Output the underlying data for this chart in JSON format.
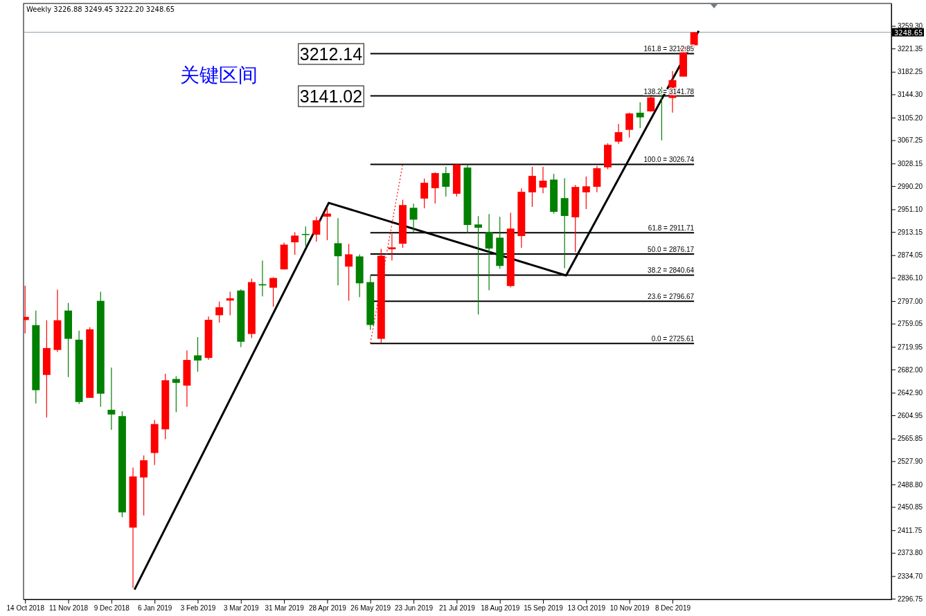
{
  "chart_data": {
    "type": "candlestick",
    "title": "Weekly  3226.88 3249.45 3222.20 3248.65",
    "xlim": [
      "2018-10-13",
      "2020-04-28"
    ],
    "ylim": [
      2295.6,
      3297.1
    ],
    "xticks": [
      {
        "value": "2018-10-14",
        "label": "14 Oct 2018"
      },
      {
        "value": "2018-11-11",
        "label": "11 Nov 2018"
      },
      {
        "value": "2018-12-09",
        "label": "9 Dec 2018"
      },
      {
        "value": "2019-01-06",
        "label": "6 Jan 2019"
      },
      {
        "value": "2019-02-03",
        "label": "3 Feb 2019"
      },
      {
        "value": "2019-03-03",
        "label": "3 Mar 2019"
      },
      {
        "value": "2019-03-31",
        "label": "31 Mar 2019"
      },
      {
        "value": "2019-04-28",
        "label": "28 Apr 2019"
      },
      {
        "value": "2019-05-26",
        "label": "26 May 2019"
      },
      {
        "value": "2019-06-23",
        "label": "23 Jun 2019"
      },
      {
        "value": "2019-07-21",
        "label": "21 Jul 2019"
      },
      {
        "value": "2019-08-18",
        "label": "18 Aug 2019"
      },
      {
        "value": "2019-09-15",
        "label": "15 Sep 2019"
      },
      {
        "value": "2019-10-13",
        "label": "13 Oct 2019"
      },
      {
        "value": "2019-11-10",
        "label": "10 Nov 2019"
      },
      {
        "value": "2019-12-08",
        "label": "8 Dec 2019"
      }
    ],
    "yticks": [
      {
        "value": 3259.3,
        "label": "3259.30"
      },
      {
        "value": 3221.35,
        "label": "3221.35"
      },
      {
        "value": 3182.25,
        "label": "3182.25"
      },
      {
        "value": 3144.3,
        "label": "3144.30"
      },
      {
        "value": 3105.2,
        "label": "3105.20"
      },
      {
        "value": 3067.25,
        "label": "3067.25"
      },
      {
        "value": 3028.15,
        "label": "3028.15"
      },
      {
        "value": 2990.2,
        "label": "2990.20"
      },
      {
        "value": 2951.1,
        "label": "2951.10"
      },
      {
        "value": 2913.15,
        "label": "2913.15"
      },
      {
        "value": 2874.05,
        "label": "2874.05"
      },
      {
        "value": 2836.1,
        "label": "2836.10"
      },
      {
        "value": 2797.0,
        "label": "2797.00"
      },
      {
        "value": 2759.05,
        "label": "2759.05"
      },
      {
        "value": 2719.95,
        "label": "2719.95"
      },
      {
        "value": 2682.0,
        "label": "2682.00"
      },
      {
        "value": 2642.9,
        "label": "2642.90"
      },
      {
        "value": 2604.95,
        "label": "2604.95"
      },
      {
        "value": 2565.85,
        "label": "2565.85"
      },
      {
        "value": 2527.9,
        "label": "2527.90"
      },
      {
        "value": 2488.8,
        "label": "2488.80"
      },
      {
        "value": 2450.85,
        "label": "2450.85"
      },
      {
        "value": 2411.75,
        "label": "2411.75"
      },
      {
        "value": 2373.8,
        "label": "2373.80"
      },
      {
        "value": 2334.7,
        "label": "2334.70"
      },
      {
        "value": 2296.75,
        "label": "2296.75"
      }
    ],
    "series": [
      {
        "type": "line",
        "color": "#000000",
        "x": [
          "2018-12-24",
          "2019-04-29",
          "2019-09-30",
          "2019-12-25"
        ],
        "values": [
          2312,
          2962,
          2840,
          3251
        ]
      },
      {
        "type": "line",
        "color": "#ff0000",
        "line_style": "dotted",
        "x": [
          "2019-05-26",
          "2019-06-16"
        ],
        "values": [
          2726,
          3027
        ]
      },
      {
        "x": [
          "2018-10-14",
          "2018-10-21",
          "2018-10-28",
          "2018-11-04",
          "2018-11-11",
          "2018-11-18",
          "2018-11-25",
          "2018-12-02",
          "2018-12-09",
          "2018-12-16",
          "2018-12-23",
          "2018-12-30",
          "2019-01-06",
          "2019-01-13",
          "2019-01-20",
          "2019-01-27",
          "2019-02-03",
          "2019-02-10",
          "2019-02-17",
          "2019-02-24",
          "2019-03-03",
          "2019-03-10",
          "2019-03-17",
          "2019-03-24",
          "2019-03-31",
          "2019-04-07",
          "2019-04-14",
          "2019-04-21",
          "2019-04-28",
          "2019-05-05",
          "2019-05-12",
          "2019-05-19",
          "2019-05-26",
          "2019-06-02",
          "2019-06-09",
          "2019-06-16",
          "2019-06-23",
          "2019-06-30",
          "2019-07-07",
          "2019-07-14",
          "2019-07-21",
          "2019-07-28",
          "2019-08-04",
          "2019-08-11",
          "2019-08-18",
          "2019-08-25",
          "2019-09-01",
          "2019-09-08",
          "2019-09-15",
          "2019-09-22",
          "2019-09-29",
          "2019-10-06",
          "2019-10-13",
          "2019-10-20",
          "2019-10-27",
          "2019-11-03",
          "2019-11-10",
          "2019-11-17",
          "2019-11-24",
          "2019-12-01",
          "2019-12-08",
          "2019-12-15",
          "2019-12-22"
        ],
        "ohlc": [
          [
            2765.0,
            2822.9,
            2742.5,
            2770.4
          ],
          [
            2756.5,
            2781.0,
            2624.7,
            2647.2
          ],
          [
            2672.8,
            2764.7,
            2601.3,
            2718.0
          ],
          [
            2714.8,
            2816.0,
            2711.3,
            2764.7
          ],
          [
            2781.0,
            2793.8,
            2669.3,
            2733.5
          ],
          [
            2732.0,
            2747.2,
            2623.8,
            2627.3
          ],
          [
            2634.3,
            2753.0,
            2634.3,
            2749.5
          ],
          [
            2797.3,
            2812.5,
            2619.2,
            2641.3
          ],
          [
            2614.2,
            2685.3,
            2580.7,
            2606.3
          ],
          [
            2603.6,
            2611.8,
            2433.7,
            2441.8
          ],
          [
            2416.2,
            2517.3,
            2314.7,
            2502.2
          ],
          [
            2500.5,
            2537.6,
            2436.6,
            2529.4
          ],
          [
            2541.6,
            2597.3,
            2521.6,
            2590.3
          ],
          [
            2581.4,
            2674.7,
            2565.0,
            2663.9
          ],
          [
            2666.0,
            2670.8,
            2610.3,
            2659.5
          ],
          [
            2654.8,
            2714.0,
            2619.3,
            2698.0
          ],
          [
            2705.7,
            2736.4,
            2678.1,
            2697.1
          ],
          [
            2701.4,
            2771.0,
            2698.4,
            2765.4
          ],
          [
            2773.2,
            2796.1,
            2761.0,
            2786.6
          ],
          [
            2797.8,
            2812.5,
            2773.2,
            2801.6
          ],
          [
            2814.7,
            2816.8,
            2719.6,
            2728.6
          ],
          [
            2741.7,
            2834.7,
            2734.7,
            2828.8
          ],
          [
            2825.3,
            2865.0,
            2804.7,
            2823.3
          ],
          [
            2819.4,
            2837.0,
            2787.2,
            2835.8
          ],
          [
            2850.2,
            2895.3,
            2850.2,
            2891.8
          ],
          [
            2895.7,
            2912.8,
            2874.7,
            2907.0
          ],
          [
            2909.7,
            2922.2,
            2889.5,
            2908.2
          ],
          [
            2908.5,
            2938.5,
            2896.8,
            2932.7
          ],
          [
            2938.8,
            2953.7,
            2899.2,
            2944.0
          ],
          [
            2894.2,
            2936.2,
            2823.3,
            2872.3
          ],
          [
            2854.9,
            2893.0,
            2797.7,
            2875.5
          ],
          [
            2872.0,
            2875.5,
            2803.5,
            2826.8
          ],
          [
            2828.8,
            2839.7,
            2748.7,
            2756.8
          ],
          [
            2733.5,
            2884.8,
            2726.5,
            2873.2
          ],
          [
            2884.0,
            2909.7,
            2865.3,
            2887.2
          ],
          [
            2893.3,
            2967.3,
            2886.4,
            2958.3
          ],
          [
            2953.7,
            2960.7,
            2913.2,
            2933.8
          ],
          [
            2969.2,
            3002.7,
            2952.8,
            2995.7
          ],
          [
            2986.7,
            3013.2,
            2961.0,
            3012.0
          ],
          [
            3012.0,
            3022.5,
            2972.7,
            2989.0
          ],
          [
            2977.3,
            3027.2,
            2972.7,
            3026.3
          ],
          [
            3021.3,
            3026.3,
            2911.3,
            2924.8
          ],
          [
            2925.7,
            2939.7,
            2774.3,
            2920.2
          ],
          [
            2912.8,
            2943.2,
            2815.2,
            2885.2
          ],
          [
            2903.5,
            2938.5,
            2851.3,
            2856.0
          ],
          [
            2822.2,
            2945.5,
            2819.8,
            2918.7
          ],
          [
            2906.2,
            2986.3,
            2886.4,
            2980.5
          ],
          [
            2979.7,
            3022.5,
            2955.2,
            3007.3
          ],
          [
            2987.8,
            3022.5,
            2978.2,
            2999.2
          ],
          [
            3001.1,
            3010.8,
            2944.0,
            2946.9
          ],
          [
            2970.0,
            3003.3,
            2852.2,
            2940.0
          ],
          [
            2937.7,
            2992.2,
            2879.3,
            2988.7
          ],
          [
            2979.7,
            3006.2,
            2951.7,
            2989.8
          ],
          [
            2989.0,
            3024.0,
            2979.7,
            3020.2
          ],
          [
            3021.7,
            3062.2,
            3018.6,
            3059.5
          ],
          [
            3064.9,
            3094.8,
            3061.3,
            3080.8
          ],
          [
            3084.7,
            3113.5,
            3071.8,
            3112.3
          ],
          [
            3113.5,
            3131.0,
            3087.8,
            3105.7
          ],
          [
            3115.8,
            3140.3,
            3115.0,
            3139.2
          ],
          [
            3151.0,
            3156.7,
            3067.0,
            3147.1
          ],
          [
            3138.3,
            3183.8,
            3113.5,
            3168.3
          ],
          [
            3174.2,
            3227.5,
            3174.2,
            3224.7
          ],
          [
            3226.88,
            3249.45,
            3222.2,
            3248.65
          ]
        ],
        "colors": [
          "#ff0000",
          "#008000",
          "#ff0000",
          "#ff0000",
          "#008000",
          "#008000",
          "#ff0000",
          "#008000",
          "#008000",
          "#008000",
          "#ff0000",
          "#ff0000",
          "#ff0000",
          "#ff0000",
          "#008000",
          "#ff0000",
          "#008000",
          "#ff0000",
          "#ff0000",
          "#ff0000",
          "#008000",
          "#ff0000",
          "#008000",
          "#ff0000",
          "#ff0000",
          "#ff0000",
          "#008000",
          "#ff0000",
          "#ff0000",
          "#008000",
          "#ff0000",
          "#008000",
          "#008000",
          "#ff0000",
          "#ff0000",
          "#ff0000",
          "#008000",
          "#ff0000",
          "#ff0000",
          "#008000",
          "#ff0000",
          "#008000",
          "#008000",
          "#008000",
          "#008000",
          "#ff0000",
          "#ff0000",
          "#ff0000",
          "#ff0000",
          "#008000",
          "#008000",
          "#ff0000",
          "#ff0000",
          "#ff0000",
          "#ff0000",
          "#ff0000",
          "#ff0000",
          "#008000",
          "#ff0000",
          "#008000",
          "#ff0000",
          "#ff0000",
          "#ff0000"
        ]
      }
    ],
    "ref_lines": [
      {
        "axis": "y",
        "value": 3212.85,
        "label": "161.8 = 3212.85"
      },
      {
        "axis": "y",
        "value": 3141.78,
        "label": "138.2 = 3141.78"
      },
      {
        "axis": "y",
        "value": 3026.74,
        "label": "100.0 = 3026.74"
      },
      {
        "axis": "y",
        "value": 2911.71,
        "label": "61.8 = 2911.71"
      },
      {
        "axis": "y",
        "value": 2876.17,
        "label": "50.0 = 2876.17"
      },
      {
        "axis": "y",
        "value": 2840.64,
        "label": "38.2 = 2840.64"
      },
      {
        "axis": "y",
        "value": 2796.67,
        "label": "23.6 = 2796.67"
      },
      {
        "axis": "y",
        "value": 2725.61,
        "label": "0.0 = 2725.61"
      },
      {
        "axis": "y",
        "value": 3248.65,
        "label": "3248.65",
        "color": "#8c9aa8"
      }
    ],
    "annotations": [
      "关键区间",
      "3212.14",
      "3141.02"
    ]
  }
}
